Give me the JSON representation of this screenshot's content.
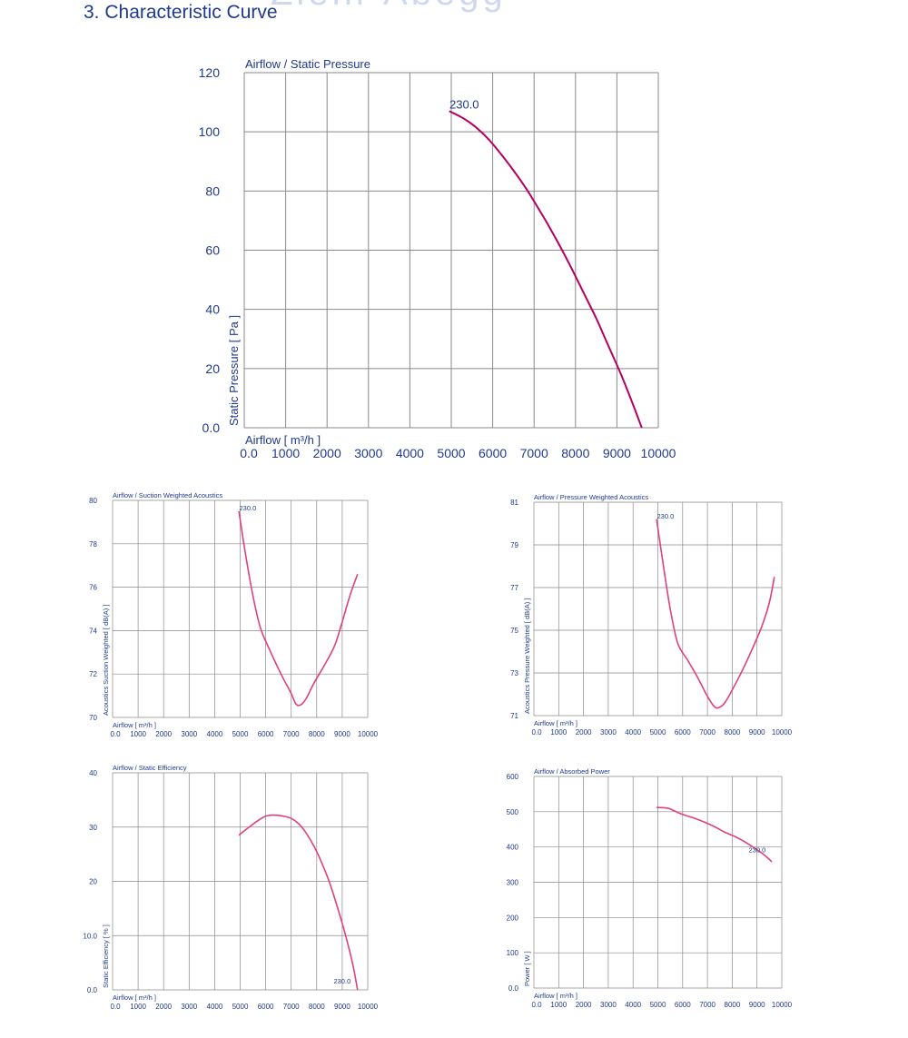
{
  "page": {
    "title": "3. Characteristic Curve",
    "watermark": "Ziehl-Abegg"
  },
  "colors": {
    "text": "#1f3a8f",
    "grid": "#8a8a8a",
    "main_curve": "#b5005f",
    "small_curve": "#e0407f"
  },
  "chart_data": [
    {
      "id": "static-pressure",
      "type": "line",
      "title": "Airflow / Static Pressure",
      "xlabel": "Airflow [ m³/h ]",
      "ylabel": "Static Pressure [ Pa ]",
      "xlim": [
        0,
        10000
      ],
      "ylim": [
        0,
        120
      ],
      "xticks": [
        0,
        1000,
        2000,
        3000,
        4000,
        5000,
        6000,
        7000,
        8000,
        9000,
        10000
      ],
      "xtick_labels": [
        "0.0",
        "1000",
        "2000",
        "3000",
        "4000",
        "5000",
        "6000",
        "7000",
        "8000",
        "9000",
        "10000"
      ],
      "yticks": [
        0,
        20,
        40,
        60,
        80,
        100,
        120
      ],
      "ytick_labels": [
        "0.0",
        "20",
        "40",
        "60",
        "80",
        "100",
        "120"
      ],
      "grid": true,
      "series": [
        {
          "name": "230.0",
          "x": [
            4950,
            5300,
            5600,
            5900,
            6200,
            6500,
            6800,
            7000,
            7300,
            7600,
            7900,
            8200,
            8500,
            8800,
            9100,
            9400,
            9600
          ],
          "y": [
            107,
            104.5,
            101.5,
            97.5,
            92.5,
            87,
            81,
            76.5,
            69.5,
            62,
            54,
            45.5,
            37,
            27.5,
            18,
            7.5,
            0
          ]
        }
      ],
      "annotations": [
        {
          "text": "230.0",
          "x": 5000,
          "y": 107
        }
      ]
    },
    {
      "id": "suction-acoustics",
      "type": "line",
      "title": "Airflow / Suction Weighted Acoustics",
      "xlabel": "Airflow [ m³/h ]",
      "ylabel": "Acoustics Suction Weighted [ dB(A) ]",
      "xlim": [
        0,
        10000
      ],
      "ylim": [
        70,
        80
      ],
      "xticks": [
        0,
        1000,
        2000,
        3000,
        4000,
        5000,
        6000,
        7000,
        8000,
        9000,
        10000
      ],
      "xtick_labels": [
        "0.0",
        "1000",
        "2000",
        "3000",
        "4000",
        "5000",
        "6000",
        "7000",
        "8000",
        "9000",
        "10000"
      ],
      "yticks": [
        70,
        72,
        74,
        76,
        78,
        80
      ],
      "ytick_labels": [
        "70",
        "72",
        "74",
        "76",
        "78",
        "80"
      ],
      "grid": true,
      "series": [
        {
          "name": "230.0",
          "x": [
            4950,
            5200,
            5500,
            5800,
            6200,
            6600,
            7000,
            7200,
            7400,
            7600,
            7900,
            8300,
            8700,
            9000,
            9300,
            9600
          ],
          "y": [
            79.5,
            77.6,
            75.6,
            74.1,
            73.0,
            72.0,
            71.1,
            70.6,
            70.6,
            70.9,
            71.6,
            72.4,
            73.3,
            74.4,
            75.6,
            76.6
          ]
        }
      ],
      "annotations": [
        {
          "text": "230.0",
          "x": 5000,
          "y": 79.5
        }
      ]
    },
    {
      "id": "pressure-acoustics",
      "type": "line",
      "title": "Airflow / Pressure Weighted Acoustics",
      "xlabel": "Airflow [ m³/h ]",
      "ylabel": "Acoustics Pressure Weighted [ dB(A) ]",
      "xlim": [
        0,
        10000
      ],
      "ylim": [
        71,
        81
      ],
      "xticks": [
        0,
        1000,
        2000,
        3000,
        4000,
        5000,
        6000,
        7000,
        8000,
        9000,
        10000
      ],
      "xtick_labels": [
        "0.0",
        "1000",
        "2000",
        "3000",
        "4000",
        "5000",
        "6000",
        "7000",
        "8000",
        "9000",
        "10000"
      ],
      "yticks": [
        71,
        73,
        75,
        77,
        79,
        81
      ],
      "ytick_labels": [
        "71",
        "73",
        "75",
        "77",
        "79",
        "81"
      ],
      "grid": true,
      "series": [
        {
          "name": "230.0",
          "x": [
            4950,
            5200,
            5500,
            5800,
            6200,
            6600,
            7000,
            7300,
            7500,
            7700,
            8000,
            8400,
            8800,
            9200,
            9500,
            9700
          ],
          "y": [
            80.2,
            78.2,
            76.0,
            74.4,
            73.6,
            72.8,
            71.9,
            71.4,
            71.4,
            71.6,
            72.2,
            73.1,
            74.1,
            75.2,
            76.3,
            77.5
          ]
        }
      ],
      "annotations": [
        {
          "text": "230.0",
          "x": 5000,
          "y": 80.2
        }
      ]
    },
    {
      "id": "static-efficiency",
      "type": "line",
      "title": "Airflow / Static Efficiency",
      "xlabel": "Airflow [ m³/h ]",
      "ylabel": "Static Efficiency [ % ]",
      "xlim": [
        0,
        10000
      ],
      "ylim": [
        0,
        40
      ],
      "xticks": [
        0,
        1000,
        2000,
        3000,
        4000,
        5000,
        6000,
        7000,
        8000,
        9000,
        10000
      ],
      "xtick_labels": [
        "0.0",
        "1000",
        "2000",
        "3000",
        "4000",
        "5000",
        "6000",
        "7000",
        "8000",
        "9000",
        "10000"
      ],
      "yticks": [
        0,
        10,
        20,
        30,
        40
      ],
      "ytick_labels": [
        "0.0",
        "10.0",
        "20",
        "30",
        "40"
      ],
      "grid": true,
      "series": [
        {
          "name": "230.0",
          "x": [
            4950,
            5300,
            5700,
            6000,
            6300,
            6700,
            7000,
            7300,
            7600,
            7900,
            8200,
            8500,
            8800,
            9100,
            9400,
            9600
          ],
          "y": [
            28.5,
            29.8,
            31.2,
            32.0,
            32.2,
            32.0,
            31.6,
            30.6,
            28.8,
            26.4,
            23.4,
            19.8,
            15.4,
            10.6,
            5.0,
            0
          ]
        }
      ],
      "annotations": [
        {
          "text": "230.0",
          "x": 8700,
          "y": 1
        }
      ]
    },
    {
      "id": "absorbed-power",
      "type": "line",
      "title": "Airflow / Absorbed Power",
      "xlabel": "Airflow [ m³/h ]",
      "ylabel": "Power [ W ]",
      "xlim": [
        0,
        10000
      ],
      "ylim": [
        0,
        600
      ],
      "xticks": [
        0,
        1000,
        2000,
        3000,
        4000,
        5000,
        6000,
        7000,
        8000,
        9000,
        10000
      ],
      "xtick_labels": [
        "0.0",
        "1000",
        "2000",
        "3000",
        "4000",
        "5000",
        "6000",
        "7000",
        "8000",
        "9000",
        "10000"
      ],
      "yticks": [
        0,
        100,
        200,
        300,
        400,
        500,
        600
      ],
      "ytick_labels": [
        "0.0",
        "100",
        "200",
        "300",
        "400",
        "500",
        "600"
      ],
      "grid": true,
      "series": [
        {
          "name": "230.0",
          "x": [
            4950,
            5300,
            5500,
            5800,
            6100,
            6500,
            6900,
            7300,
            7700,
            8100,
            8500,
            8900,
            9300,
            9600
          ],
          "y": [
            512,
            511,
            508,
            498,
            490,
            481,
            470,
            457,
            442,
            430,
            415,
            397,
            377,
            358
          ]
        }
      ],
      "annotations": [
        {
          "text": "230.0",
          "x": 8700,
          "y": 383
        }
      ]
    }
  ]
}
